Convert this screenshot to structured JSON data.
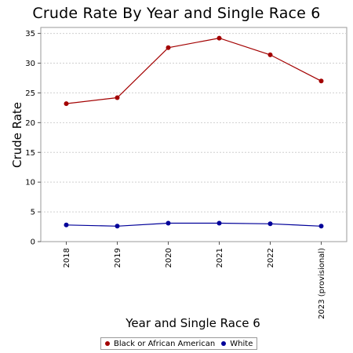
{
  "chart_data": {
    "type": "line",
    "title": "Crude Rate By Year and Single Race 6",
    "xlabel": "Year and Single Race 6",
    "ylabel": "Crude Rate",
    "categories": [
      "2018",
      "2019",
      "2020",
      "2021",
      "2022",
      "2023 (provisional)"
    ],
    "ylim": [
      0,
      36
    ],
    "yticks": [
      0,
      5,
      10,
      15,
      20,
      25,
      30,
      35
    ],
    "grid": true,
    "legend_position": "bottom",
    "series": [
      {
        "name": "Black or African American",
        "color": "#a30000",
        "values": [
          23.2,
          24.2,
          32.6,
          34.2,
          31.4,
          27.0
        ]
      },
      {
        "name": "White",
        "color": "#000099",
        "values": [
          2.8,
          2.6,
          3.1,
          3.1,
          3.0,
          2.6
        ]
      }
    ]
  }
}
